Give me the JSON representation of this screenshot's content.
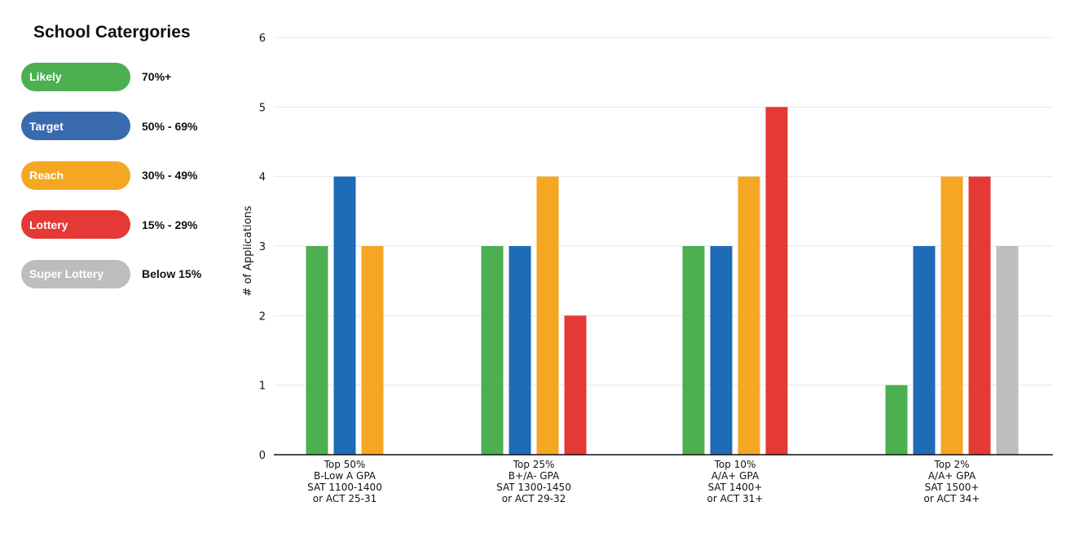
{
  "legend": {
    "title": "School Catergories",
    "items": [
      {
        "label": "Likely",
        "range": "70%+",
        "color": "#4caf50"
      },
      {
        "label": "Target",
        "range": "50% - 69%",
        "color": "#3a6aae"
      },
      {
        "label": "Reach",
        "range": "30% - 49%",
        "color": "#f5a623"
      },
      {
        "label": "Lottery",
        "range": "15% - 29%",
        "color": "#e53935"
      },
      {
        "label": "Super Lottery",
        "range": "Below 15%",
        "color": "#bdbdbd"
      }
    ]
  },
  "chart_data": {
    "type": "bar",
    "ylabel": "# of Applications",
    "xlabel": "",
    "ylim": [
      0,
      6
    ],
    "yticks": [
      "0",
      "1",
      "2",
      "3",
      "4",
      "5",
      "6"
    ],
    "grid": true,
    "categories": [
      [
        "Top 50%",
        "B-Low A GPA",
        "SAT 1100-1400",
        "or ACT 25-31"
      ],
      [
        "Top 25%",
        "B+/A- GPA",
        "SAT 1300-1450",
        "or ACT 29-32"
      ],
      [
        "Top 10%",
        "A/A+ GPA",
        "SAT 1400+",
        "or ACT 31+"
      ],
      [
        "Top 2%",
        "A/A+ GPA",
        "SAT 1500+",
        "or ACT 34+"
      ]
    ],
    "series": [
      {
        "name": "Likely",
        "color": "#4caf50",
        "values": [
          3,
          3,
          3,
          1
        ]
      },
      {
        "name": "Target",
        "color": "#1e6bb8",
        "values": [
          4,
          3,
          3,
          3
        ]
      },
      {
        "name": "Reach",
        "color": "#f5a623",
        "values": [
          3,
          4,
          4,
          4
        ]
      },
      {
        "name": "Lottery",
        "color": "#e53935",
        "values": [
          0,
          2,
          5,
          4
        ]
      },
      {
        "name": "Super Lottery",
        "color": "#bdbdbd",
        "values": [
          0,
          0,
          0,
          3
        ]
      }
    ]
  }
}
